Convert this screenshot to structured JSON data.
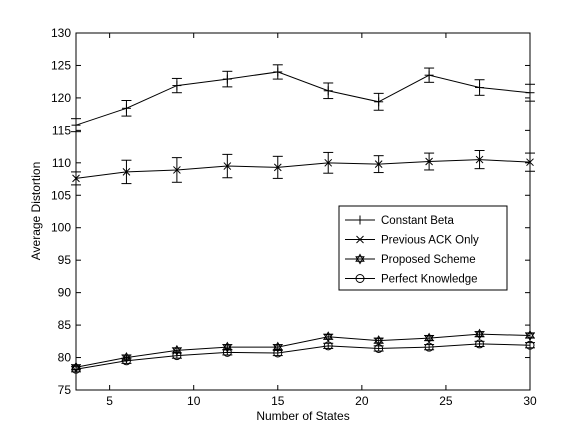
{
  "chart_data": {
    "type": "line",
    "xlabel": "Number of States",
    "ylabel": "Average Distortion",
    "xlim": [
      3,
      30
    ],
    "ylim": [
      75,
      130
    ],
    "xticks": [
      5,
      10,
      15,
      20,
      25,
      30
    ],
    "yticks": [
      75,
      80,
      85,
      90,
      95,
      100,
      105,
      110,
      115,
      120,
      125,
      130
    ],
    "grid": false,
    "legend_position": "center-right",
    "x": [
      3,
      6,
      9,
      12,
      15,
      18,
      21,
      24,
      27,
      30
    ],
    "series": [
      {
        "name": "Constant Beta",
        "marker": "plus",
        "values": [
          115.8,
          118.4,
          121.9,
          122.9,
          124.0,
          121.1,
          119.4,
          123.5,
          121.6,
          120.8
        ],
        "errors": [
          1.0,
          1.2,
          1.1,
          1.2,
          1.1,
          1.2,
          1.3,
          1.1,
          1.2,
          1.3
        ]
      },
      {
        "name": "Previous ACK Only",
        "marker": "x",
        "values": [
          107.6,
          108.6,
          108.9,
          109.5,
          109.3,
          110.0,
          109.8,
          110.2,
          110.5,
          110.1
        ],
        "errors": [
          1.0,
          1.8,
          1.9,
          1.8,
          1.7,
          1.6,
          1.3,
          1.3,
          1.4,
          1.4
        ]
      },
      {
        "name": "Proposed Scheme",
        "marker": "star",
        "values": [
          78.5,
          80.0,
          81.1,
          81.6,
          81.6,
          83.2,
          82.6,
          83.0,
          83.6,
          83.4
        ],
        "errors": [
          0.4,
          0.4,
          0.4,
          0.4,
          0.4,
          0.4,
          0.4,
          0.4,
          0.4,
          0.4
        ]
      },
      {
        "name": "Perfect Knowledge",
        "marker": "circle",
        "values": [
          78.2,
          79.5,
          80.3,
          80.8,
          80.7,
          81.8,
          81.4,
          81.6,
          82.1,
          81.9
        ],
        "errors": [
          0.4,
          0.4,
          0.4,
          0.4,
          0.4,
          0.4,
          0.4,
          0.4,
          0.4,
          0.4
        ]
      }
    ]
  }
}
